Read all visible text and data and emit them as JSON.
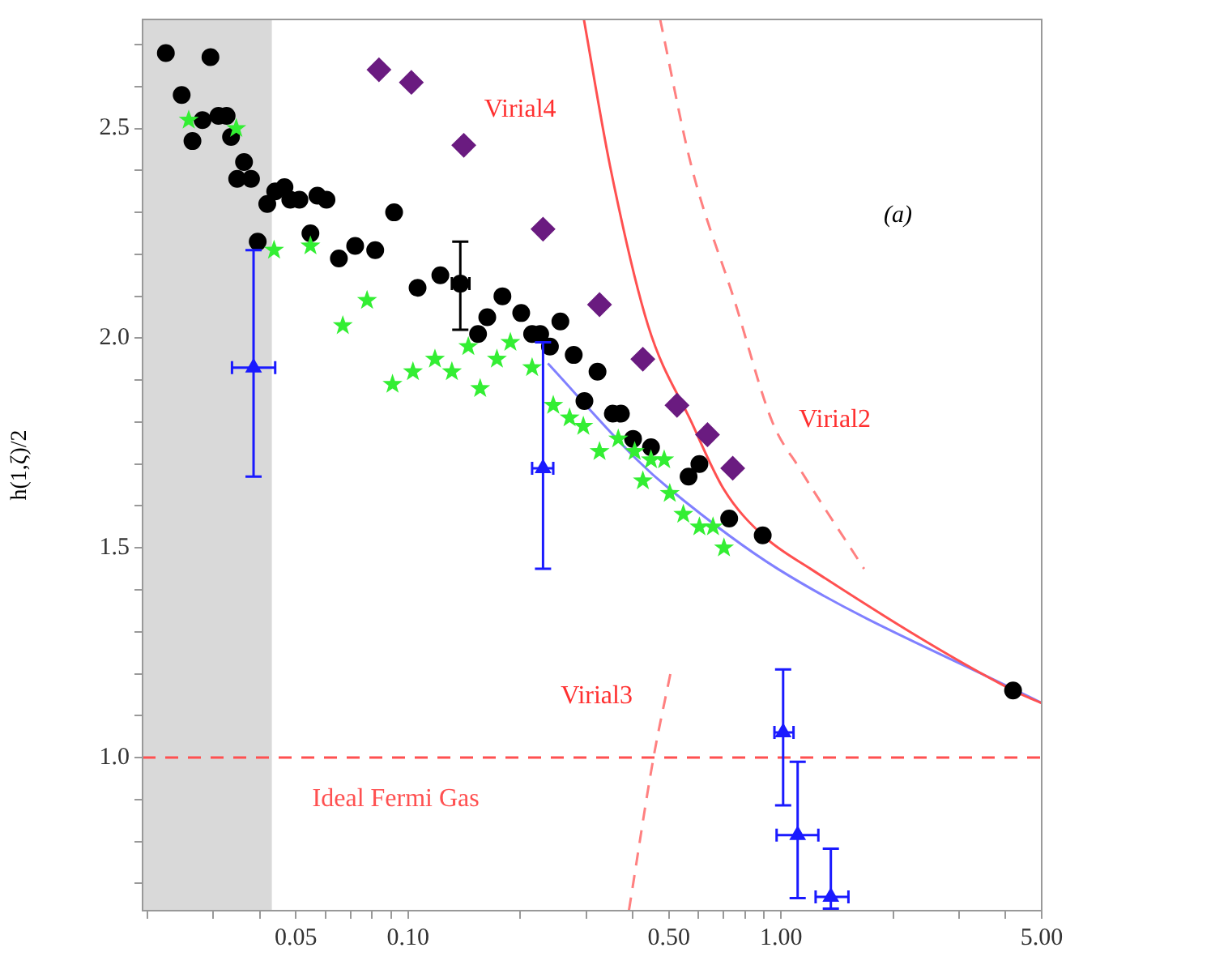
{
  "chart_data": {
    "type": "scatter",
    "ylabel": "h(1,ζ)/2",
    "log": "x",
    "grid": false,
    "legend": false,
    "xlim": [
      0.0194,
      5
    ],
    "ylim": [
      0.635,
      2.76
    ],
    "xticks": [
      {
        "value": 0.02,
        "label": null
      },
      {
        "value": 0.03,
        "label": null
      },
      {
        "value": 0.04,
        "label": null
      },
      {
        "value": 0.05,
        "label": "0.05"
      },
      {
        "value": 0.06,
        "label": null
      },
      {
        "value": 0.07,
        "label": null
      },
      {
        "value": 0.08,
        "label": null
      },
      {
        "value": 0.09,
        "label": null
      },
      {
        "value": 0.1,
        "label": "0.10"
      },
      {
        "value": 0.2,
        "label": null
      },
      {
        "value": 0.3,
        "label": null
      },
      {
        "value": 0.4,
        "label": null
      },
      {
        "value": 0.5,
        "label": "0.50"
      },
      {
        "value": 0.6,
        "label": null
      },
      {
        "value": 0.7,
        "label": null
      },
      {
        "value": 0.8,
        "label": null
      },
      {
        "value": 0.9,
        "label": null
      },
      {
        "value": 1,
        "label": "1.00"
      },
      {
        "value": 2,
        "label": null
      },
      {
        "value": 3,
        "label": null
      },
      {
        "value": 4,
        "label": null
      },
      {
        "value": 5,
        "label": "5.00"
      }
    ],
    "yticks": [
      {
        "value": 0.7,
        "label": null
      },
      {
        "value": 0.8,
        "label": null
      },
      {
        "value": 0.9,
        "label": null
      },
      {
        "value": 1,
        "label": "1.0"
      },
      {
        "value": 1.1,
        "label": null
      },
      {
        "value": 1.2,
        "label": null
      },
      {
        "value": 1.3,
        "label": null
      },
      {
        "value": 1.4,
        "label": null
      },
      {
        "value": 1.5,
        "label": "1.5"
      },
      {
        "value": 1.6,
        "label": null
      },
      {
        "value": 1.7,
        "label": null
      },
      {
        "value": 1.8,
        "label": null
      },
      {
        "value": 1.9,
        "label": null
      },
      {
        "value": 2,
        "label": "2.0"
      },
      {
        "value": 2.1,
        "label": null
      },
      {
        "value": 2.2,
        "label": null
      },
      {
        "value": 2.3,
        "label": null
      },
      {
        "value": 2.4,
        "label": null
      },
      {
        "value": 2.5,
        "label": "2.5"
      },
      {
        "value": 2.6,
        "label": null
      },
      {
        "value": 2.7,
        "label": null
      }
    ],
    "bands": [
      {
        "axis": "x",
        "from": 0.0194,
        "to": 0.0431,
        "color": "#d9d9d9"
      }
    ],
    "ref_lines": [
      {
        "axis": "y",
        "value": 1.0,
        "label": "Ideal Fermi Gas",
        "color": "#ff5050",
        "line_style": "dashed"
      }
    ],
    "annotations": [
      "Virial4",
      "Virial2",
      "Virial3",
      "(a)"
    ],
    "series": [
      {
        "type": "line",
        "marker": "none",
        "line_style": "solid",
        "color": "#ff5050",
        "x": [
          0.296,
          0.348,
          0.44,
          0.575,
          0.702,
          0.893,
          1.2,
          4.19,
          5
        ],
        "values": [
          2.76,
          2.41,
          2.03,
          1.8,
          1.64,
          1.53,
          1.45,
          1.16,
          1.13
        ]
      },
      {
        "type": "line",
        "marker": "none",
        "line_style": "dashed",
        "color": "#ff8080",
        "x": [
          0.474,
          0.575,
          0.75,
          0.948,
          1.12,
          1.67
        ],
        "values": [
          2.76,
          2.41,
          2.09,
          1.8,
          1.69,
          1.45
        ]
      },
      {
        "type": "line",
        "marker": "none",
        "line_style": "dashed",
        "color": "#ff8080",
        "x": [
          0.391,
          0.455,
          0.505
        ],
        "values": [
          0.636,
          1.0,
          1.2
        ]
      },
      {
        "type": "line",
        "marker": "none",
        "line_style": "solid",
        "color": "#8080ff",
        "x": [
          0.237,
          0.411,
          0.503,
          0.98,
          5
        ],
        "values": [
          1.94,
          1.71,
          1.64,
          1.45,
          1.13
        ]
      },
      {
        "marker": "circle",
        "color": "#000000",
        "x": [
          0.0224,
          0.0247,
          0.0295,
          0.0264,
          0.0281,
          0.031,
          0.0326,
          0.0335,
          0.0363,
          0.0348,
          0.0379,
          0.0395,
          0.0419,
          0.044,
          0.0466,
          0.0483,
          0.0511,
          0.0547,
          0.0571,
          0.0604,
          0.0652,
          0.0721,
          0.0816,
          0.0917,
          0.106,
          0.122,
          0.138,
          0.154,
          0.163,
          0.179,
          0.201,
          0.215,
          0.226,
          0.24,
          0.256,
          0.278,
          0.322,
          0.297,
          0.354,
          0.372,
          0.401,
          0.448,
          0.565,
          0.604,
          0.726,
          0.893,
          4.19
        ],
        "values": [
          2.68,
          2.58,
          2.67,
          2.47,
          2.52,
          2.53,
          2.53,
          2.48,
          2.42,
          2.38,
          2.38,
          2.23,
          2.32,
          2.35,
          2.36,
          2.33,
          2.33,
          2.25,
          2.34,
          2.33,
          2.19,
          2.22,
          2.21,
          2.3,
          2.12,
          2.15,
          2.13,
          2.01,
          2.05,
          2.1,
          2.06,
          2.01,
          2.01,
          1.98,
          2.04,
          1.96,
          1.92,
          1.85,
          1.82,
          1.82,
          1.76,
          1.74,
          1.67,
          1.7,
          1.57,
          1.53,
          1.16
        ],
        "errors": [
          null,
          null,
          null,
          null,
          null,
          null,
          null,
          null,
          null,
          null,
          null,
          null,
          null,
          null,
          null,
          null,
          null,
          null,
          null,
          null,
          null,
          null,
          null,
          null,
          null,
          null,
          [
            2.02,
            2.23
          ],
          null,
          null,
          null,
          null,
          null,
          null,
          null,
          null,
          null,
          null,
          null,
          null,
          null,
          null,
          null,
          null,
          null,
          null,
          null,
          null
        ],
        "xerrors": [
          null,
          null,
          null,
          null,
          null,
          null,
          null,
          null,
          null,
          null,
          null,
          null,
          null,
          null,
          null,
          null,
          null,
          null,
          null,
          null,
          null,
          null,
          null,
          null,
          null,
          null,
          [
            0.131,
            0.146
          ],
          null,
          null,
          null,
          null,
          null,
          null,
          null,
          null,
          null,
          null,
          null,
          null,
          null,
          null,
          null,
          null,
          null,
          null,
          null,
          null
        ]
      },
      {
        "marker": "star",
        "color": "#33ee33",
        "x": [
          0.0258,
          0.0346,
          0.0437,
          0.0547,
          0.0668,
          0.0776,
          0.0908,
          0.103,
          0.118,
          0.131,
          0.145,
          0.156,
          0.173,
          0.188,
          0.215,
          0.245,
          0.271,
          0.295,
          0.326,
          0.366,
          0.405,
          0.448,
          0.486,
          0.426,
          0.503,
          0.547,
          0.604,
          0.657,
          0.703
        ],
        "values": [
          2.52,
          2.5,
          2.21,
          2.22,
          2.03,
          2.09,
          1.89,
          1.92,
          1.95,
          1.92,
          1.98,
          1.88,
          1.95,
          1.99,
          1.93,
          1.84,
          1.81,
          1.79,
          1.73,
          1.76,
          1.73,
          1.71,
          1.71,
          1.66,
          1.63,
          1.58,
          1.55,
          1.55,
          1.5
        ]
      },
      {
        "marker": "diamond",
        "color": "#6a1b80",
        "x": [
          0.0835,
          0.102,
          0.141,
          0.23,
          0.326,
          0.426,
          0.526,
          0.635,
          0.742
        ],
        "values": [
          2.64,
          2.61,
          2.46,
          2.26,
          2.08,
          1.95,
          1.84,
          1.77,
          1.69
        ]
      },
      {
        "marker": "triangle",
        "color": "#1a1aff",
        "x": [
          0.0385,
          0.23,
          1.013,
          1.108,
          1.36
        ],
        "values": [
          1.93,
          1.69,
          1.06,
          0.815,
          0.668
        ],
        "errors": [
          [
            1.67,
            2.21
          ],
          [
            1.45,
            1.99
          ],
          [
            0.886,
            1.21
          ],
          [
            0.665,
            0.99
          ],
          [
            0.64,
            0.783
          ]
        ],
        "xerrors": [
          [
            0.0337,
            0.044
          ],
          [
            0.215,
            0.245
          ],
          [
            0.96,
            1.08
          ],
          [
            0.973,
            1.259
          ],
          [
            1.238,
            1.516
          ]
        ]
      }
    ]
  }
}
